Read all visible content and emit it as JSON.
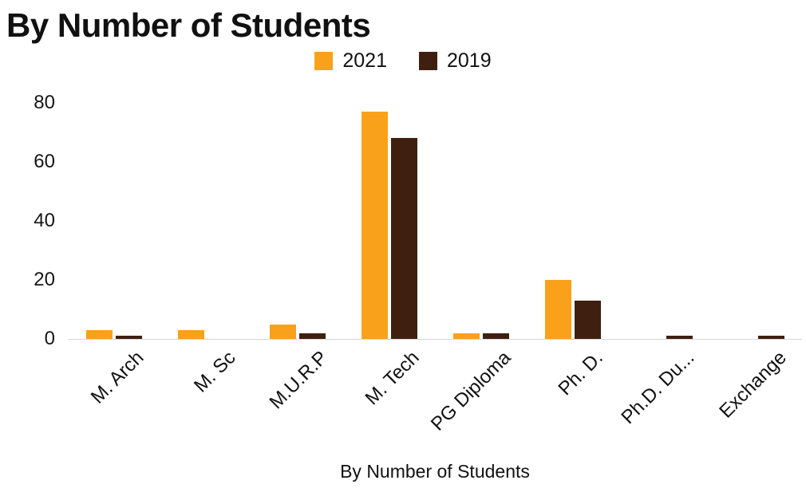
{
  "chart_data": {
    "type": "bar",
    "title": "By Number of Students",
    "xlabel": "By Number of Students",
    "ylabel": "",
    "ylim": [
      0,
      80
    ],
    "y_ticks": [
      0,
      20,
      40,
      60,
      80
    ],
    "grid": false,
    "legend_position": "top",
    "categories": [
      "M. Arch",
      "M. Sc",
      "M.U.R.P",
      "M. Tech",
      "PG Diploma",
      "Ph. D.",
      "Ph.D. Du...",
      "Exchange"
    ],
    "series": [
      {
        "name": "2021",
        "color": "#F9A11B",
        "values": [
          3,
          3,
          5,
          77,
          2,
          20,
          0,
          0
        ]
      },
      {
        "name": "2019",
        "color": "#3F2010",
        "values": [
          1,
          0,
          2,
          68,
          2,
          13,
          1,
          1
        ]
      }
    ],
    "colors": {
      "series_2021": "#F9A11B",
      "series_2019": "#3F2010",
      "axis_line": "#d6d6d6",
      "text": "#111111"
    }
  }
}
